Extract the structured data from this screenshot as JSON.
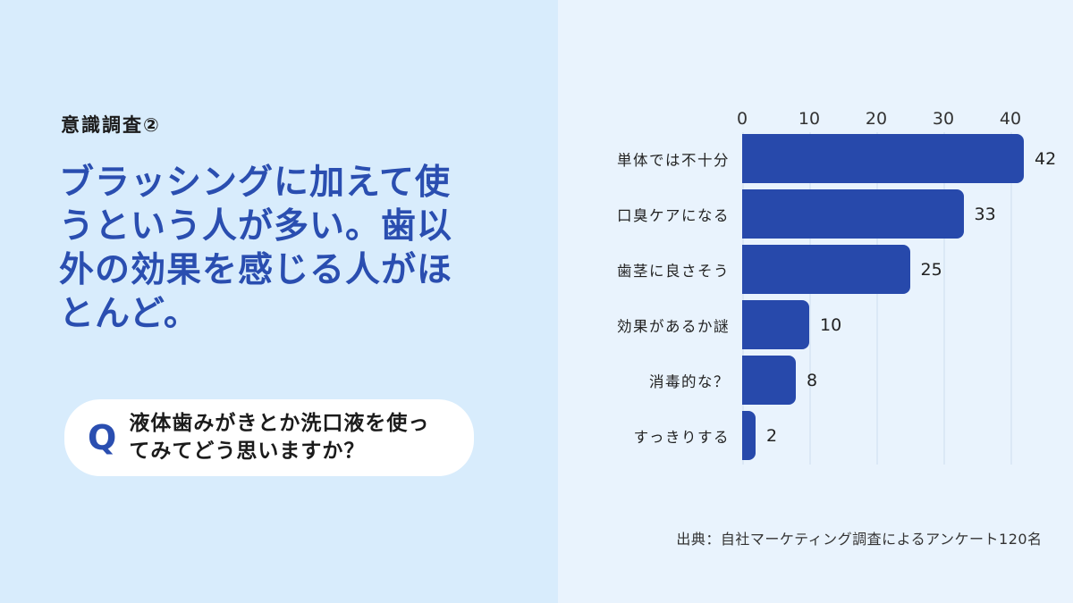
{
  "colors": {
    "left_bg": "#d8ecfc",
    "right_bg": "#e9f3fd",
    "bar": "#2749ab",
    "accent_blue": "#2a4eb0",
    "grid": "#dbe8f6",
    "ink": "#1b1b1b"
  },
  "left": {
    "kicker": "意識調査②",
    "heading": "ブラッシングに加えて使うという人が多い。歯以外の効果を感じる人がほとんど。",
    "question": {
      "q_label": "Q",
      "text": "液体歯みがきとか洗口液を使ってみてどう思いますか？"
    }
  },
  "chart_data": {
    "type": "bar",
    "orientation": "horizontal",
    "categories": [
      "単体では不十分",
      "口臭ケアになる",
      "歯茎に良さそう",
      "効果があるか謎",
      "消毒的な？",
      "すっきりする"
    ],
    "values": [
      42,
      33,
      25,
      10,
      8,
      2
    ],
    "x_ticks": [
      0,
      10,
      20,
      30,
      40
    ],
    "xlim": [
      0,
      45
    ],
    "grid": true,
    "legend": false,
    "title": "",
    "xlabel": "",
    "ylabel": "",
    "source": "出典：自社マーケティング調査によるアンケート120名"
  }
}
